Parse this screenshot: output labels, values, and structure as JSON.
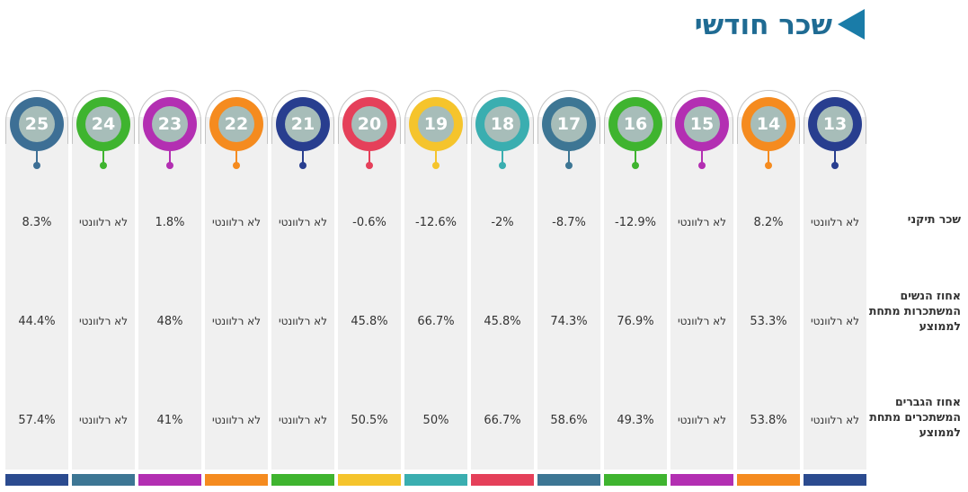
{
  "header": {
    "title": "שכר חודשי"
  },
  "row_labels": {
    "r1": "שכר תיקני",
    "r2": "אחוז הנשים המשתכרות מתחת לממוצע",
    "r3": "אחוז הגברים המשתכרים מתחת לממוצע"
  },
  "columns": [
    {
      "num": "25",
      "r1": "8.3%",
      "r2": "44.4%",
      "r3": "57.4%",
      "color": "#3d6f95",
      "bar": "#2b4b8f"
    },
    {
      "num": "24",
      "r1": "לא רלוונטי",
      "r2": "לא רלוונטי",
      "r3": "לא רלוונטי",
      "color": "#3fb42f",
      "bar": "#3d7694"
    },
    {
      "num": "23",
      "r1": "1.8%",
      "r2": "48%",
      "r3": "41%",
      "color": "#b32fb2",
      "bar": "#b32fb2"
    },
    {
      "num": "22",
      "r1": "לא רלוונטי",
      "r2": "לא רלוונטי",
      "r3": "לא רלוונטי",
      "color": "#f58b1f",
      "bar": "#f58b1f"
    },
    {
      "num": "21",
      "r1": "לא רלוונטי",
      "r2": "לא רלוונטי",
      "r3": "לא רלוונטי",
      "color": "#283e8f",
      "bar": "#3fb42f"
    },
    {
      "num": "20",
      "r1": "-0.6%",
      "r2": "45.8%",
      "r3": "50.5%",
      "color": "#e5405a",
      "bar": "#f5c42c"
    },
    {
      "num": "19",
      "r1": "-12.6%",
      "r2": "66.7%",
      "r3": "50%",
      "color": "#f5c42c",
      "bar": "#3aaeb0"
    },
    {
      "num": "18",
      "r1": "-2%",
      "r2": "45.8%",
      "r3": "66.7%",
      "color": "#3aaeb0",
      "bar": "#e5405a"
    },
    {
      "num": "17",
      "r1": "-8.7%",
      "r2": "74.3%",
      "r3": "58.6%",
      "color": "#3d7694",
      "bar": "#3d7694"
    },
    {
      "num": "16",
      "r1": "-12.9%",
      "r2": "76.9%",
      "r3": "49.3%",
      "color": "#3fb42f",
      "bar": "#3fb42f"
    },
    {
      "num": "15",
      "r1": "לא רלוונטי",
      "r2": "לא רלוונטי",
      "r3": "לא רלוונטי",
      "color": "#b32fb2",
      "bar": "#b32fb2"
    },
    {
      "num": "14",
      "r1": "8.2%",
      "r2": "53.3%",
      "r3": "53.8%",
      "color": "#f58b1f",
      "bar": "#f58b1f"
    },
    {
      "num": "13",
      "r1": "לא רלוונטי",
      "r2": "לא רלוונטי",
      "r3": "לא רלוונטי",
      "color": "#283e8f",
      "bar": "#2b4b8f"
    }
  ]
}
